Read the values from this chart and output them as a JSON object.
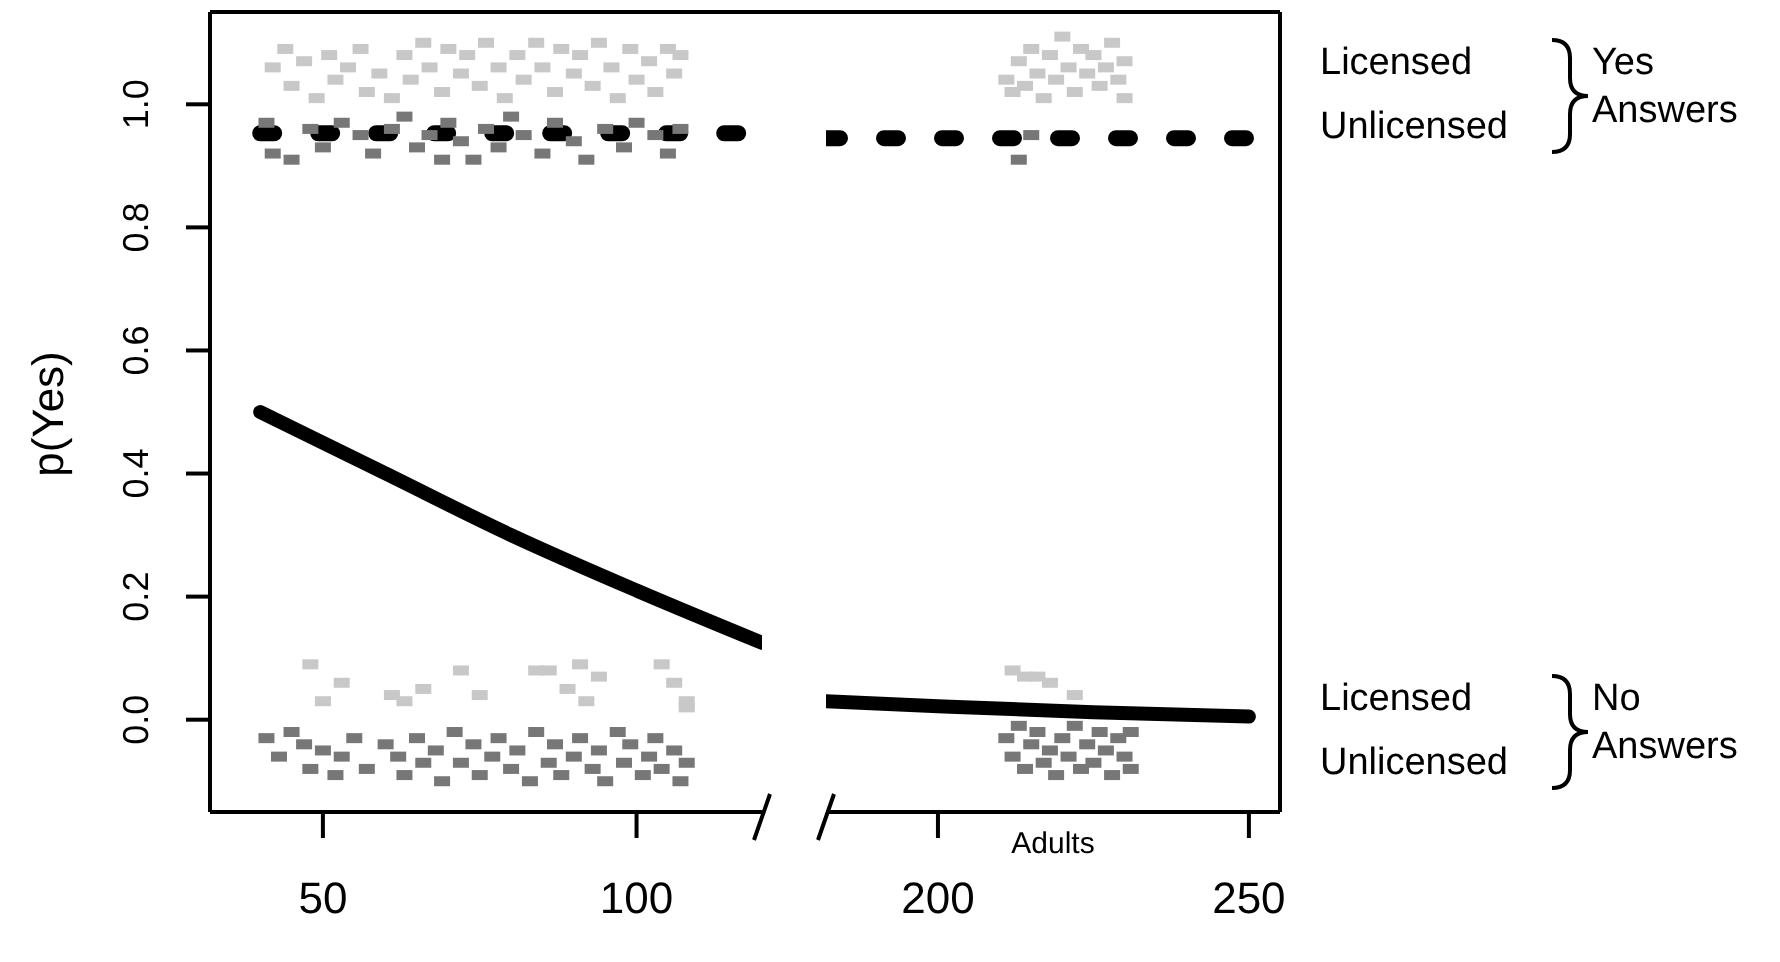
{
  "chart_data": [
    {
      "type": "scatter",
      "ylabel": "p(Yes)",
      "xlim": [
        32,
        120
      ],
      "xticks": [
        50,
        100
      ],
      "ylim": [
        -0.15,
        1.15
      ],
      "yticks": [
        {
          "value": 0,
          "label": "0.0"
        },
        0.2,
        0.4,
        0.6,
        0.8,
        {
          "value": 1,
          "label": "1.0"
        }
      ],
      "series": [
        {
          "color": "#c8c8c8",
          "marker": "square",
          "x": [
            42,
            44,
            45,
            47,
            49,
            51,
            52,
            54,
            56,
            57,
            59,
            61,
            63,
            64,
            66,
            67,
            69,
            70,
            72,
            73,
            75,
            76,
            78,
            79,
            81,
            82,
            84,
            85,
            87,
            88,
            90,
            91,
            93,
            94,
            96,
            97,
            99,
            100,
            102,
            103,
            105,
            106,
            107
          ],
          "values": [
            1.06,
            1.09,
            1.03,
            1.07,
            1.01,
            1.08,
            1.04,
            1.06,
            1.09,
            1.02,
            1.05,
            1.01,
            1.08,
            1.04,
            1.1,
            1.06,
            1.02,
            1.09,
            1.05,
            1.08,
            1.03,
            1.1,
            1.06,
            1.01,
            1.08,
            1.04,
            1.1,
            1.06,
            1.02,
            1.09,
            1.05,
            1.08,
            1.03,
            1.1,
            1.06,
            1.01,
            1.09,
            1.04,
            1.07,
            1.02,
            1.09,
            1.05,
            1.08
          ]
        },
        {
          "color": "#777777",
          "marker": "square",
          "x": [
            41,
            42,
            45,
            48,
            50,
            53,
            56,
            58,
            61,
            63,
            65,
            67,
            69,
            70,
            72,
            74,
            76,
            78,
            80,
            82,
            85,
            87,
            90,
            92,
            95,
            98,
            100,
            103,
            105,
            107
          ],
          "values": [
            0.97,
            0.92,
            0.91,
            0.96,
            0.93,
            0.97,
            0.95,
            0.92,
            0.96,
            0.98,
            0.93,
            0.95,
            0.91,
            0.97,
            0.94,
            0.91,
            0.96,
            0.93,
            0.98,
            0.95,
            0.92,
            0.97,
            0.94,
            0.91,
            0.96,
            0.93,
            0.97,
            0.95,
            0.92,
            0.96
          ]
        },
        {
          "color": "#c8c8c8",
          "marker": "square",
          "x": [
            48,
            50,
            53,
            61,
            63,
            66,
            72,
            75,
            84,
            86,
            89,
            91,
            92,
            94,
            104,
            106,
            108,
            108
          ],
          "values": [
            0.09,
            0.03,
            0.06,
            0.04,
            0.03,
            0.05,
            0.08,
            0.04,
            0.08,
            0.08,
            0.05,
            0.09,
            0.03,
            0.07,
            0.09,
            0.06,
            0.03,
            0.02
          ]
        },
        {
          "color": "#777777",
          "marker": "square",
          "x": [
            41,
            43,
            45,
            47,
            48,
            50,
            52,
            53,
            55,
            57,
            60,
            62,
            63,
            65,
            66,
            68,
            69,
            71,
            72,
            74,
            75,
            77,
            78,
            80,
            81,
            83,
            84,
            86,
            87,
            88,
            90,
            91,
            93,
            94,
            95,
            97,
            98,
            99,
            101,
            102,
            103,
            104,
            106,
            107,
            108
          ],
          "values": [
            -0.03,
            -0.06,
            -0.02,
            -0.04,
            -0.08,
            -0.05,
            -0.09,
            -0.06,
            -0.03,
            -0.08,
            -0.04,
            -0.06,
            -0.09,
            -0.03,
            -0.07,
            -0.05,
            -0.1,
            -0.02,
            -0.07,
            -0.04,
            -0.09,
            -0.06,
            -0.03,
            -0.08,
            -0.05,
            -0.1,
            -0.02,
            -0.07,
            -0.04,
            -0.09,
            -0.06,
            -0.03,
            -0.08,
            -0.05,
            -0.1,
            -0.02,
            -0.07,
            -0.04,
            -0.09,
            -0.06,
            -0.03,
            -0.08,
            -0.05,
            -0.1,
            -0.07
          ]
        },
        {
          "type": "line",
          "color": "#000000",
          "marker": "none",
          "line_style": "dashed",
          "x": [
            40,
            80,
            120
          ],
          "values": [
            0.953,
            0.953,
            0.953
          ]
        },
        {
          "type": "line",
          "color": "#000000",
          "marker": "none",
          "line_style": "solid",
          "x": [
            40,
            60,
            80,
            100,
            120
          ],
          "values": [
            0.5,
            0.4,
            0.3,
            0.21,
            0.125
          ]
        }
      ]
    },
    {
      "type": "scatter",
      "xlabel": "Adults",
      "xlim": [
        182,
        255
      ],
      "xticks": [
        200,
        250
      ],
      "ylim": [
        -0.15,
        1.15
      ],
      "tick_labels": "x",
      "annotations": [
        "Licensed",
        "Unlicensed",
        "Yes Answers",
        "Licensed",
        "Unlicensed",
        "No Answers"
      ],
      "series": [
        {
          "color": "#c8c8c8",
          "marker": "square",
          "x": [
            211,
            212,
            213,
            214,
            215,
            216,
            217,
            218,
            219,
            220,
            221,
            222,
            223,
            224,
            225,
            226,
            227,
            228,
            229,
            230,
            230
          ],
          "values": [
            1.04,
            1.02,
            1.07,
            1.03,
            1.09,
            1.05,
            1.01,
            1.08,
            1.04,
            1.11,
            1.06,
            1.02,
            1.09,
            1.05,
            1.08,
            1.03,
            1.06,
            1.1,
            1.04,
            1.07,
            1.01
          ]
        },
        {
          "color": "#777777",
          "marker": "square",
          "x": [
            213,
            215
          ],
          "values": [
            0.91,
            0.95
          ]
        },
        {
          "color": "#c8c8c8",
          "marker": "square",
          "x": [
            212,
            214,
            216,
            218,
            222
          ],
          "values": [
            0.08,
            0.07,
            0.07,
            0.06,
            0.04
          ]
        },
        {
          "color": "#777777",
          "marker": "square",
          "x": [
            211,
            212,
            213,
            214,
            215,
            216,
            217,
            218,
            219,
            220,
            221,
            222,
            223,
            224,
            225,
            226,
            227,
            228,
            229,
            230,
            231,
            231
          ],
          "values": [
            -0.03,
            -0.06,
            -0.01,
            -0.08,
            -0.04,
            -0.02,
            -0.07,
            -0.05,
            -0.09,
            -0.03,
            -0.06,
            -0.01,
            -0.08,
            -0.04,
            -0.07,
            -0.02,
            -0.05,
            -0.09,
            -0.03,
            -0.06,
            -0.08,
            -0.02
          ]
        },
        {
          "type": "line",
          "color": "#000000",
          "marker": "none",
          "line_style": "dashed",
          "x": [
            182,
            216,
            250
          ],
          "values": [
            0.945,
            0.945,
            0.945
          ]
        },
        {
          "type": "line",
          "color": "#000000",
          "marker": "none",
          "line_style": "solid",
          "x": [
            182,
            200,
            225,
            250
          ],
          "values": [
            0.03,
            0.022,
            0.012,
            0.005
          ]
        }
      ]
    }
  ]
}
